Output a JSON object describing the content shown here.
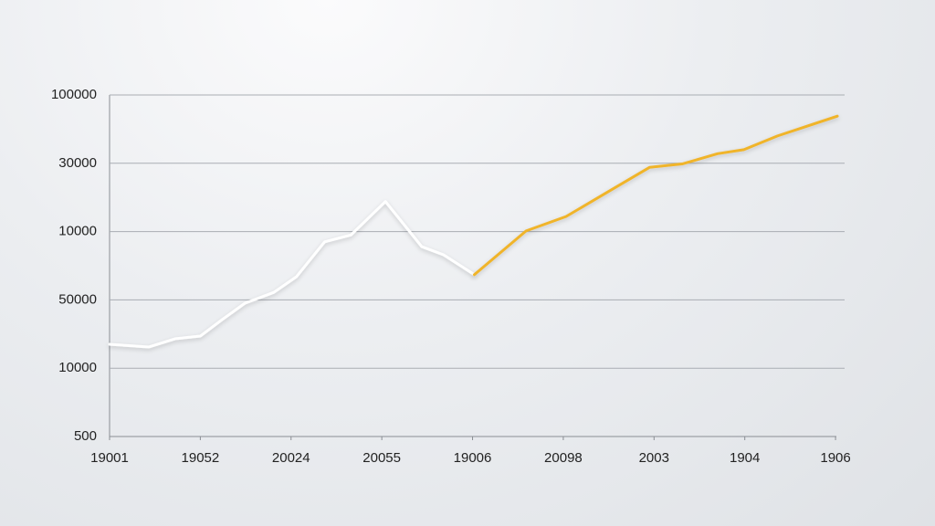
{
  "chart_data": {
    "type": "line",
    "xlim": [
      0,
      8.1
    ],
    "xticks": [
      {
        "value": 0,
        "label": "19001"
      },
      {
        "value": 1,
        "label": "19052"
      },
      {
        "value": 2,
        "label": "20024"
      },
      {
        "value": 3,
        "label": "20055"
      },
      {
        "value": 4,
        "label": "19006"
      },
      {
        "value": 5,
        "label": "20098"
      },
      {
        "value": 6,
        "label": "2003"
      },
      {
        "value": 7,
        "label": "1904"
      },
      {
        "value": 8,
        "label": "1906"
      }
    ],
    "ylim": [
      0,
      5
    ],
    "yticks": [
      {
        "value": 0,
        "label": "500"
      },
      {
        "value": 1,
        "label": "10000"
      },
      {
        "value": 2,
        "label": "50000"
      },
      {
        "value": 3,
        "label": "10000"
      },
      {
        "value": 4,
        "label": "30000"
      },
      {
        "value": 5,
        "label": "100000"
      }
    ],
    "grid": true,
    "series": [
      {
        "color": "#ffffff",
        "x": [
          0,
          0.43,
          0.72,
          1.0,
          1.24,
          1.49,
          1.81,
          2.06,
          2.37,
          2.66,
          3.04,
          3.44,
          3.68,
          4.02
        ],
        "values": [
          1.35,
          1.31,
          1.43,
          1.47,
          1.71,
          1.95,
          2.11,
          2.34,
          2.85,
          2.95,
          3.44,
          2.78,
          2.66,
          2.37
        ]
      },
      {
        "color": "#f0b429",
        "x": [
          4.02,
          4.59,
          5.03,
          5.49,
          5.95,
          6.31,
          6.7,
          6.99,
          7.36,
          8.02
        ],
        "values": [
          2.37,
          3.01,
          3.22,
          3.58,
          3.94,
          3.99,
          4.14,
          4.2,
          4.4,
          4.69
        ]
      }
    ]
  }
}
